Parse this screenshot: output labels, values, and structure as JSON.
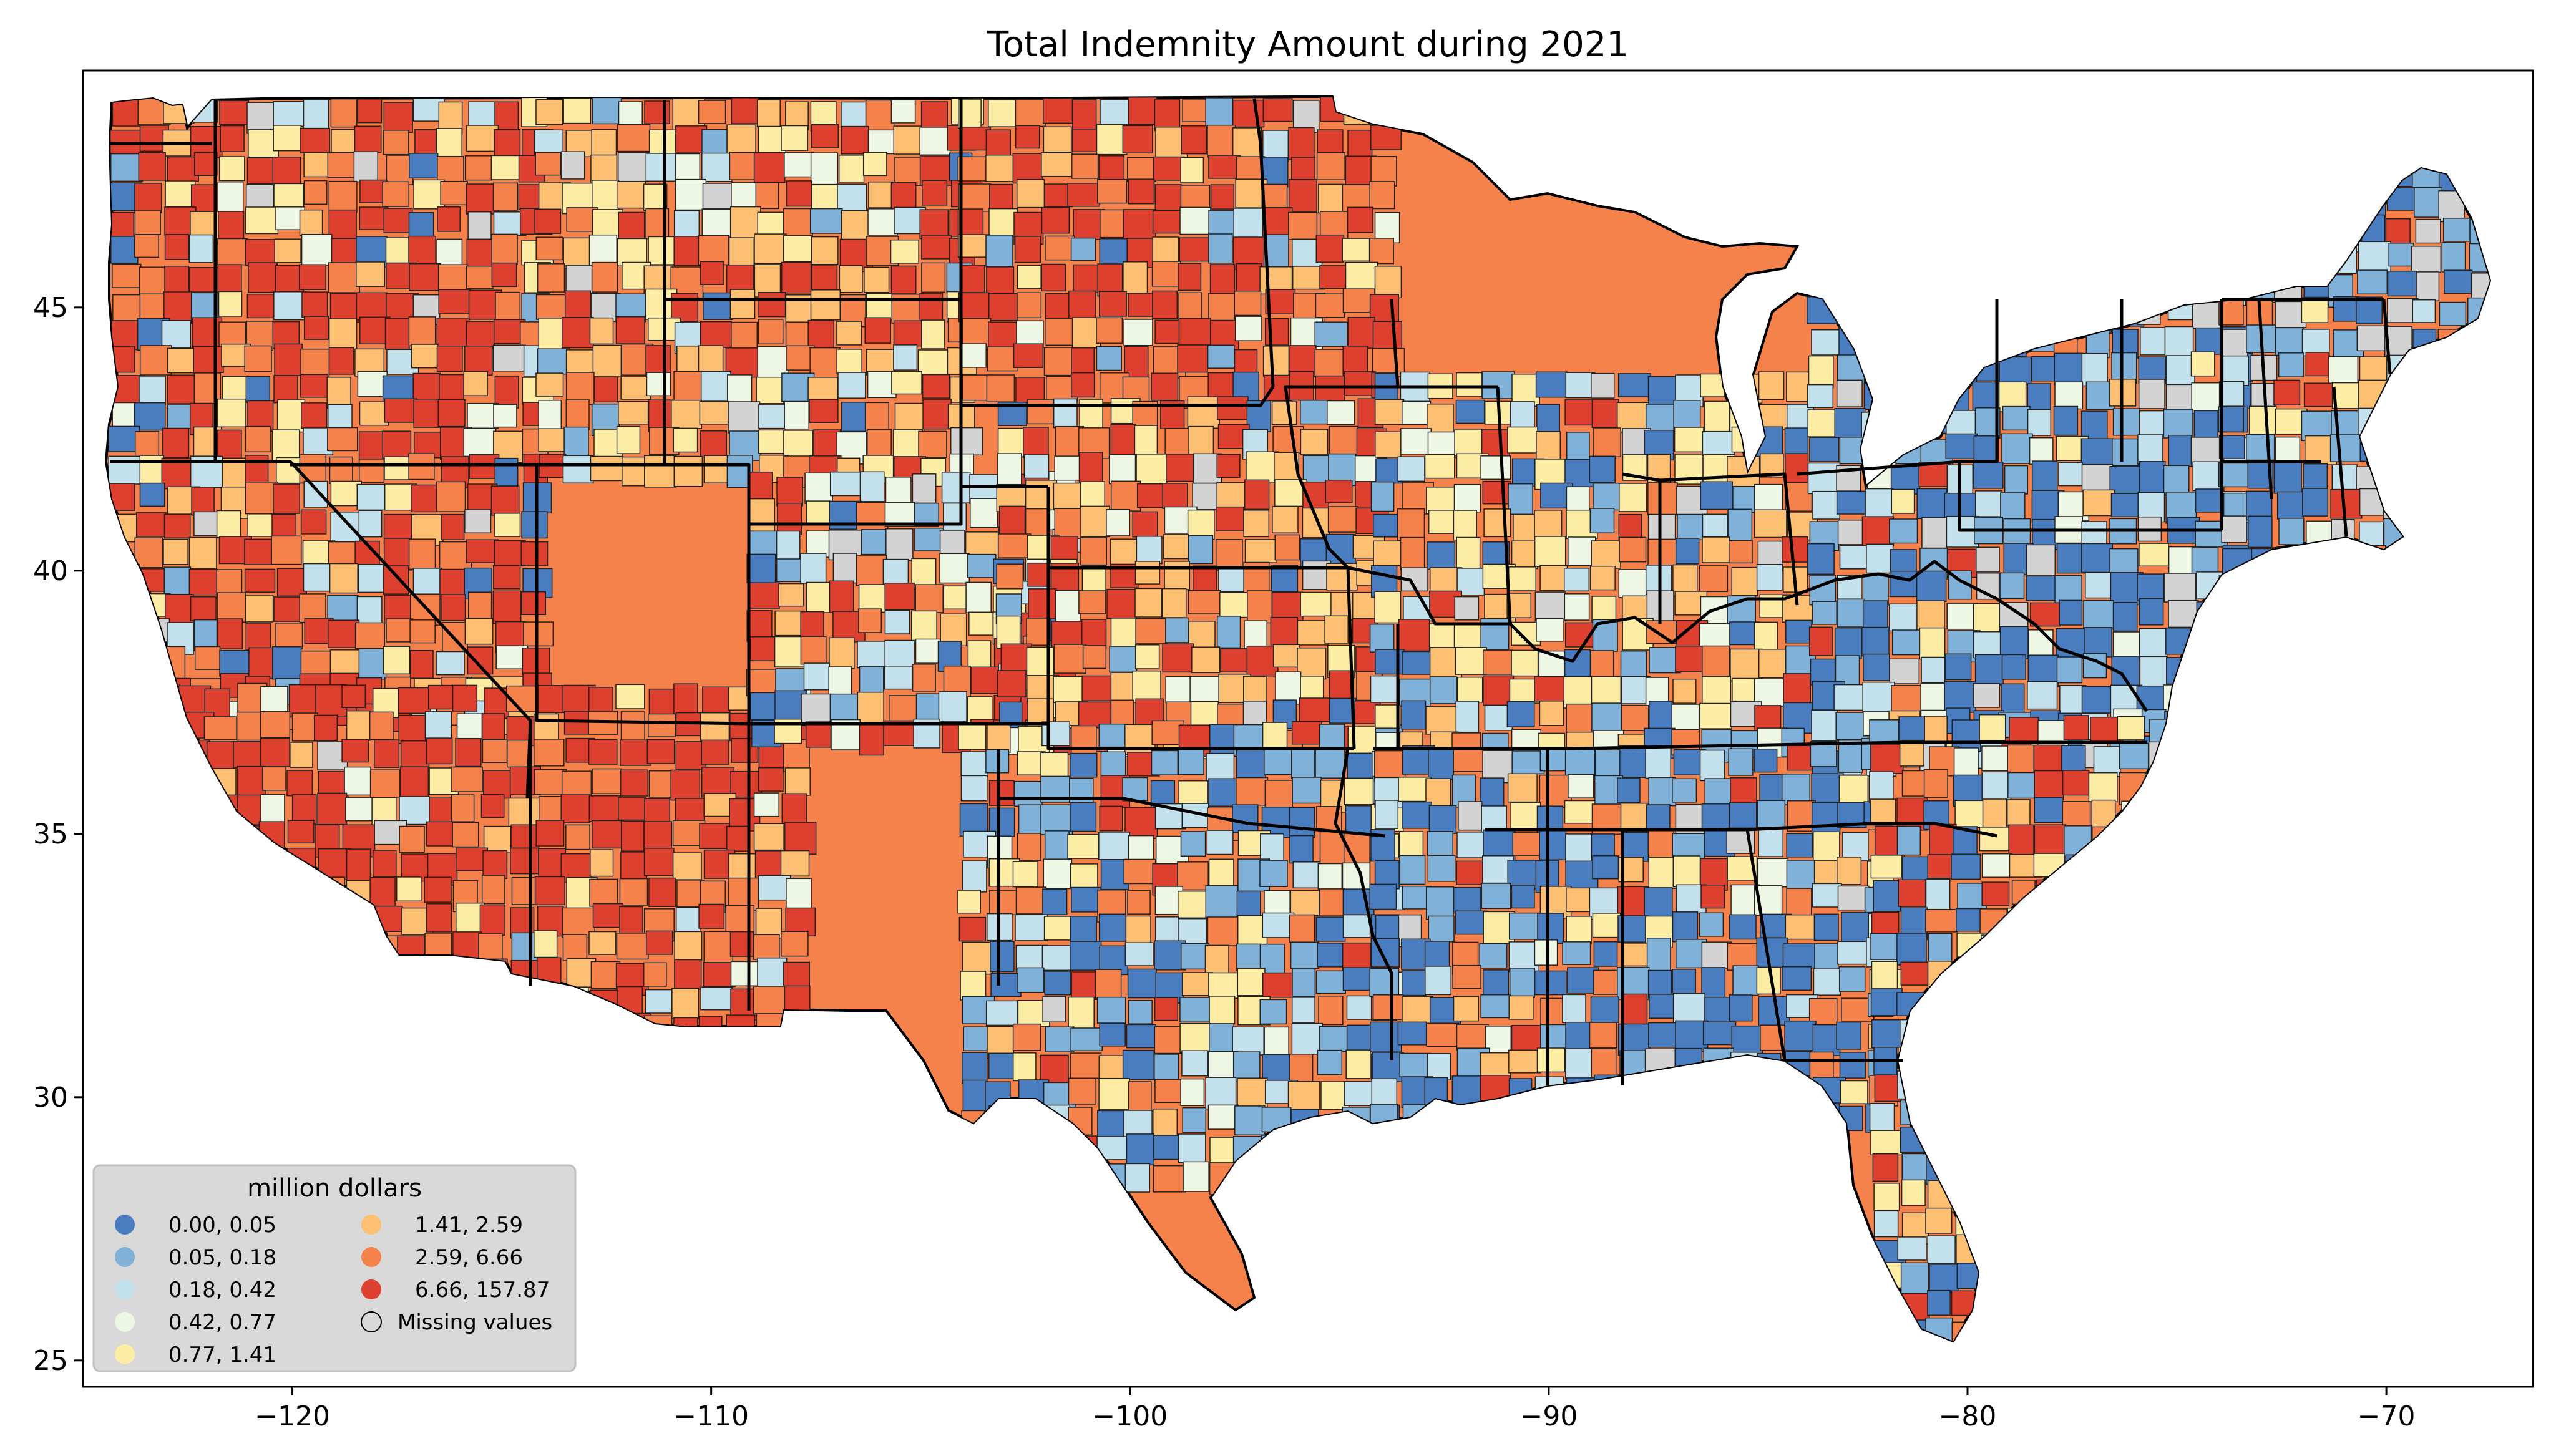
{
  "title": "Total Indemnity Amount during 2021",
  "axes": {
    "x_ticks": [
      {
        "value": -120,
        "label": "−120"
      },
      {
        "value": -110,
        "label": "−110"
      },
      {
        "value": -100,
        "label": "−100"
      },
      {
        "value": -90,
        "label": "−90"
      },
      {
        "value": -80,
        "label": "−80"
      },
      {
        "value": -70,
        "label": "−70"
      }
    ],
    "y_ticks": [
      {
        "value": 25,
        "label": "25"
      },
      {
        "value": 30,
        "label": "30"
      },
      {
        "value": 35,
        "label": "35"
      },
      {
        "value": 40,
        "label": "40"
      },
      {
        "value": 45,
        "label": "45"
      }
    ],
    "xlim": [
      -125,
      -66.5
    ],
    "ylim": [
      24.5,
      49.5
    ]
  },
  "legend": {
    "title": "million dollars",
    "placement": "lower-left",
    "items": [
      {
        "label": "0.00,   0.05",
        "color": "#4a7cc0"
      },
      {
        "label": "0.05,   0.18",
        "color": "#7fb1d9"
      },
      {
        "label": "0.18,   0.42",
        "color": "#c2e1ec"
      },
      {
        "label": "0.42,   0.77",
        "color": "#eef7e4"
      },
      {
        "label": "0.77,   1.41",
        "color": "#fdeda4"
      },
      {
        "label": "1.41,   2.59",
        "color": "#fdc072"
      },
      {
        "label": "2.59,   6.66",
        "color": "#f5814b"
      },
      {
        "label": "6.66, 157.87",
        "color": "#dd402e"
      },
      {
        "label": "Missing values",
        "color": "#d3d3d3"
      }
    ]
  }
}
